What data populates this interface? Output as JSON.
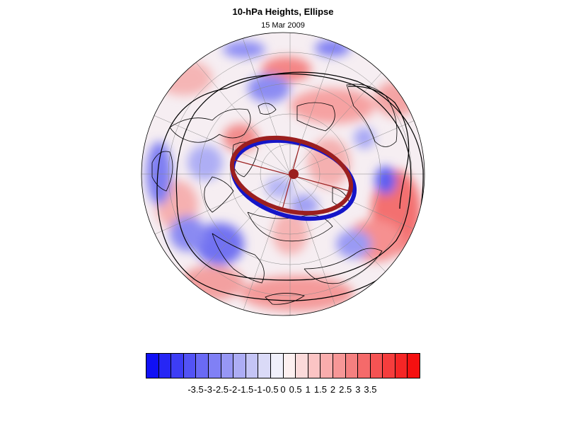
{
  "title": "10-hPa Heights, Ellipse",
  "subtitle": "15 Mar 2009",
  "map": {
    "projection": "north-polar-stereographic",
    "field": "10-hPa height anomaly",
    "overlays": [
      "coastlines",
      "lat-lon-grid",
      "height-contours",
      "fitted-ellipse",
      "ellipse-centroid"
    ]
  },
  "colorbar": {
    "colors": [
      "#1010f5",
      "#2626f5",
      "#3d3df5",
      "#5353f5",
      "#6a6af5",
      "#8080f5",
      "#9797f5",
      "#adadf5",
      "#c4c4f5",
      "#dadaf7",
      "#f0f0fb",
      "#fdf0f0",
      "#fbdada",
      "#fbc4c4",
      "#f9adad",
      "#f79797",
      "#f58080",
      "#f56a6a",
      "#f55353",
      "#f53d3d",
      "#f52626",
      "#f51010"
    ],
    "labels": [
      "-3.5",
      "-3",
      "-2.5",
      "-2",
      "-1.5",
      "-1",
      "-0.5",
      "0",
      "0.5",
      "1",
      "1.5",
      "2",
      "2.5",
      "3",
      "3.5"
    ]
  },
  "legend_colors": {
    "ellipse": "#9b1f1f",
    "blue_ring": "#1515c8",
    "contour": "#000000"
  }
}
